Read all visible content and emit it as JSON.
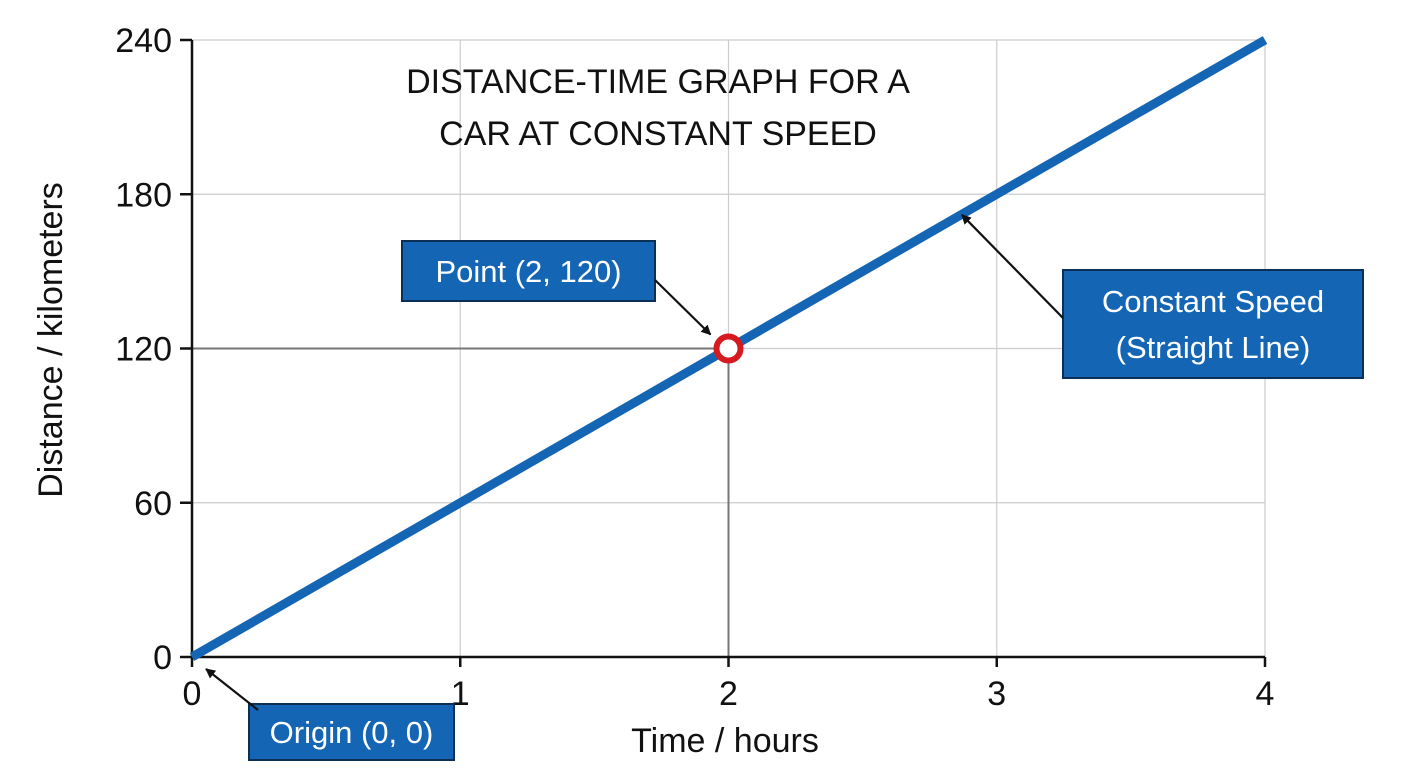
{
  "chart_data": {
    "type": "line",
    "title_lines": [
      "DISTANCE-TIME GRAPH FOR A",
      "CAR AT CONSTANT SPEED"
    ],
    "xlabel": "Time / hours",
    "ylabel": "Distance / kilometers",
    "xlim": [
      0,
      4
    ],
    "ylim": [
      0,
      240
    ],
    "x_ticks": [
      0,
      1,
      2,
      3,
      4
    ],
    "y_ticks": [
      0,
      60,
      120,
      180,
      240
    ],
    "grid": true,
    "series": [
      {
        "x": [
          0,
          4
        ],
        "y": [
          0,
          240
        ],
        "color": "#1565b5"
      }
    ],
    "highlight_point": {
      "x": 2,
      "y": 120,
      "color": "#d71920",
      "reference_lines": true
    },
    "annotations": [
      {
        "text_lines": [
          "Point (2, 120)"
        ],
        "target": {
          "x": 2,
          "y": 120
        }
      },
      {
        "text_lines": [
          "Constant Speed",
          "(Straight Line)"
        ],
        "target": {
          "x": 2.87,
          "y": 172
        }
      },
      {
        "text_lines": [
          "Origin (0, 0)"
        ],
        "target": {
          "x": 0,
          "y": 0
        }
      }
    ],
    "colors": {
      "line": "#1565b5",
      "callout_fill": "#1565b5",
      "callout_border": "#0b2f55",
      "point": "#d71920",
      "grid": "#cccccc",
      "axis": "#111111"
    }
  }
}
